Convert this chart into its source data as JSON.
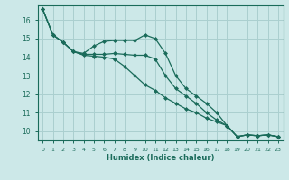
{
  "xlabel": "Humidex (Indice chaleur)",
  "background_color": "#cce8e8",
  "grid_color": "#aacfcf",
  "line_color": "#1a6b5a",
  "x_data": [
    0,
    1,
    2,
    3,
    4,
    5,
    6,
    7,
    8,
    9,
    10,
    11,
    12,
    13,
    14,
    15,
    16,
    17,
    18,
    19,
    20,
    21,
    22,
    23
  ],
  "line1": [
    16.6,
    15.2,
    14.8,
    14.3,
    14.2,
    14.6,
    14.85,
    14.9,
    14.9,
    14.9,
    15.2,
    15.0,
    14.2,
    13.0,
    12.3,
    11.9,
    11.5,
    11.0,
    10.3,
    9.7,
    9.8,
    9.75,
    9.8,
    9.7
  ],
  "line2": [
    16.6,
    15.2,
    14.8,
    14.3,
    14.15,
    14.15,
    14.15,
    14.2,
    14.15,
    14.1,
    14.1,
    13.9,
    13.0,
    12.3,
    11.9,
    11.5,
    11.0,
    10.6,
    10.3,
    9.7,
    9.8,
    9.75,
    9.8,
    9.7
  ],
  "line3": [
    16.6,
    15.2,
    14.8,
    14.3,
    14.1,
    14.05,
    14.0,
    13.9,
    13.5,
    13.0,
    12.5,
    12.2,
    11.8,
    11.5,
    11.2,
    11.0,
    10.7,
    10.5,
    10.3,
    9.7,
    9.8,
    9.75,
    9.8,
    9.7
  ],
  "ylim": [
    9.5,
    16.8
  ],
  "yticks": [
    10,
    11,
    12,
    13,
    14,
    15,
    16
  ],
  "xlim": [
    -0.5,
    23.5
  ],
  "xticks": [
    0,
    1,
    2,
    3,
    4,
    5,
    6,
    7,
    8,
    9,
    10,
    11,
    12,
    13,
    14,
    15,
    16,
    17,
    18,
    19,
    20,
    21,
    22,
    23
  ]
}
